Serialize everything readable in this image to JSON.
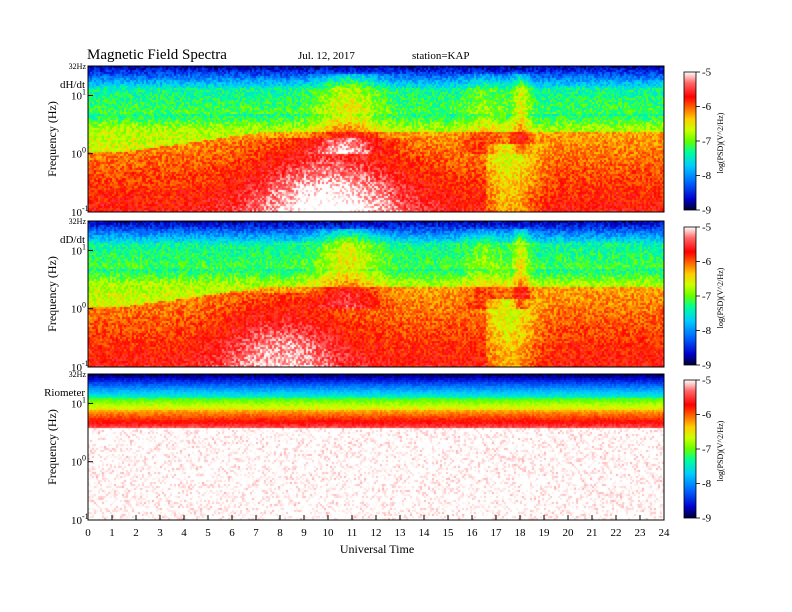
{
  "chart_data": {
    "type": "heatmap",
    "title": "Magnetic  Field  Spectra",
    "date": "Jul.  12,  2017",
    "station": "station=KAP",
    "xlabel": "Universal Time",
    "xlim": [
      0,
      24
    ],
    "x_ticks": [
      "0",
      "1",
      "2",
      "3",
      "4",
      "5",
      "6",
      "7",
      "8",
      "9",
      "10",
      "11",
      "12",
      "13",
      "14",
      "15",
      "16",
      "17",
      "18",
      "19",
      "20",
      "21",
      "22",
      "23",
      "24"
    ],
    "colorbar_label": "log(PSD)(V^2/Hz)",
    "colorbar_range": [
      -9,
      -5
    ],
    "colorbar_ticks": [
      "-5",
      "-6",
      "-7",
      "-8",
      "-9"
    ],
    "colorscale": [
      "#000033",
      "#0000cc",
      "#0066ff",
      "#00ccff",
      "#00ff99",
      "#66ff00",
      "#ccff00",
      "#ffcc00",
      "#ff6600",
      "#ff0000",
      "#ff6666",
      "#ffffff"
    ],
    "panels": [
      {
        "label": "dH/dt",
        "ylabel": "Frequency  (Hz)",
        "ylim_hz": [
          0.1,
          32
        ],
        "y_scale": "log",
        "y_ticks": {
          "top": "32Hz",
          "d10": "10",
          "d1": "10",
          "d01": "10",
          "e10": "1",
          "e1": "0",
          "e01": "-1"
        },
        "features": "spectrum mostly red (-6..-7) below ~3 Hz; white (-5) core near 0.2-1 Hz around 7-12 UT; green/cyan band 5-15 Hz; dark blue above ~20 Hz; broadband bursts near 10-12 UT and 18 UT"
      },
      {
        "label": "dD/dt",
        "ylabel": "Frequency  (Hz)",
        "ylim_hz": [
          0.1,
          32
        ],
        "y_scale": "log",
        "y_ticks": {
          "top": "32Hz",
          "d10": "10",
          "d1": "10",
          "d01": "10",
          "e10": "1",
          "e1": "0",
          "e01": "-1"
        },
        "features": "similar to dH/dt; white core weaker around 5-9 UT; bursts near 10 UT and 18 UT"
      },
      {
        "label": "Riometer",
        "ylabel": "Frequency  (Hz)",
        "ylim_hz": [
          0.1,
          32
        ],
        "y_scale": "log",
        "y_ticks": {
          "top": "32Hz",
          "d10": "10",
          "d1": "10",
          "d01": "10",
          "e10": "1",
          "e1": "0",
          "e01": "-1"
        },
        "features": "horizontal band: blue above ~15 Hz, green/yellow 8-12 Hz, red 5-8 Hz, mostly white below ~4 Hz"
      }
    ]
  }
}
